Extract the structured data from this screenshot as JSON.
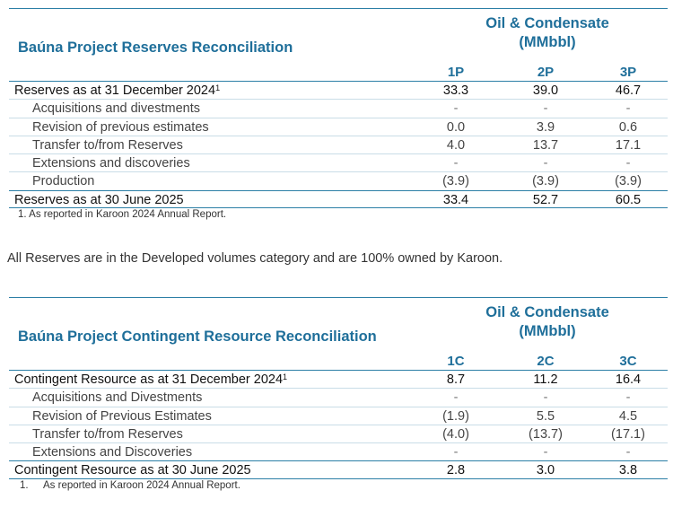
{
  "reserves": {
    "title": "Baúna Project Reserves Reconciliation",
    "group_header_line1": "Oil & Condensate",
    "group_header_line2": "(MMbbl)",
    "columns": [
      "1P",
      "2P",
      "3P"
    ],
    "rows": [
      {
        "label": "Reserves as at 31 December 2024",
        "sup": "1",
        "values": [
          "33.3",
          "39.0",
          "46.7"
        ]
      },
      {
        "label": "Acquisitions and divestments",
        "values": [
          "-",
          "-",
          "-"
        ]
      },
      {
        "label": "Revision of previous estimates",
        "values": [
          "0.0",
          "3.9",
          "0.6"
        ]
      },
      {
        "label": "Transfer to/from Reserves",
        "values": [
          "4.0",
          "13.7",
          "17.1"
        ]
      },
      {
        "label": "Extensions and discoveries",
        "values": [
          "-",
          "-",
          "-"
        ]
      },
      {
        "label": "Production",
        "values": [
          "(3.9)",
          "(3.9)",
          "(3.9)"
        ]
      },
      {
        "label": "Reserves as at 30 June 2025",
        "values": [
          "33.4",
          "52.7",
          "60.5"
        ]
      }
    ],
    "footnote": "1. As reported in Karoon 2024 Annual Report."
  },
  "note": "All Reserves are in the Developed volumes category and are 100% owned by Karoon.",
  "contingent": {
    "title": "Baúna Project Contingent Resource Reconciliation",
    "group_header_line1": "Oil & Condensate",
    "group_header_line2": "(MMbbl)",
    "columns": [
      "1C",
      "2C",
      "3C"
    ],
    "rows": [
      {
        "label": "Contingent Resource as at 31 December 2024",
        "sup": "1",
        "values": [
          "8.7",
          "11.2",
          "16.4"
        ]
      },
      {
        "label": "Acquisitions and Divestments",
        "values": [
          "-",
          "-",
          "-"
        ]
      },
      {
        "label": "Revision of Previous Estimates",
        "values": [
          "(1.9)",
          "5.5",
          "4.5"
        ]
      },
      {
        "label": "Transfer to/from Reserves",
        "values": [
          "(4.0)",
          "(13.7)",
          "(17.1)"
        ]
      },
      {
        "label": "Extensions and Discoveries",
        "values": [
          "-",
          "-",
          "-"
        ]
      },
      {
        "label": "Contingent Resource as at 30 June 2025",
        "values": [
          "2.8",
          "3.0",
          "3.8"
        ]
      }
    ],
    "footnote_number": "1.",
    "footnote": "As reported in Karoon 2024 Annual Report."
  }
}
